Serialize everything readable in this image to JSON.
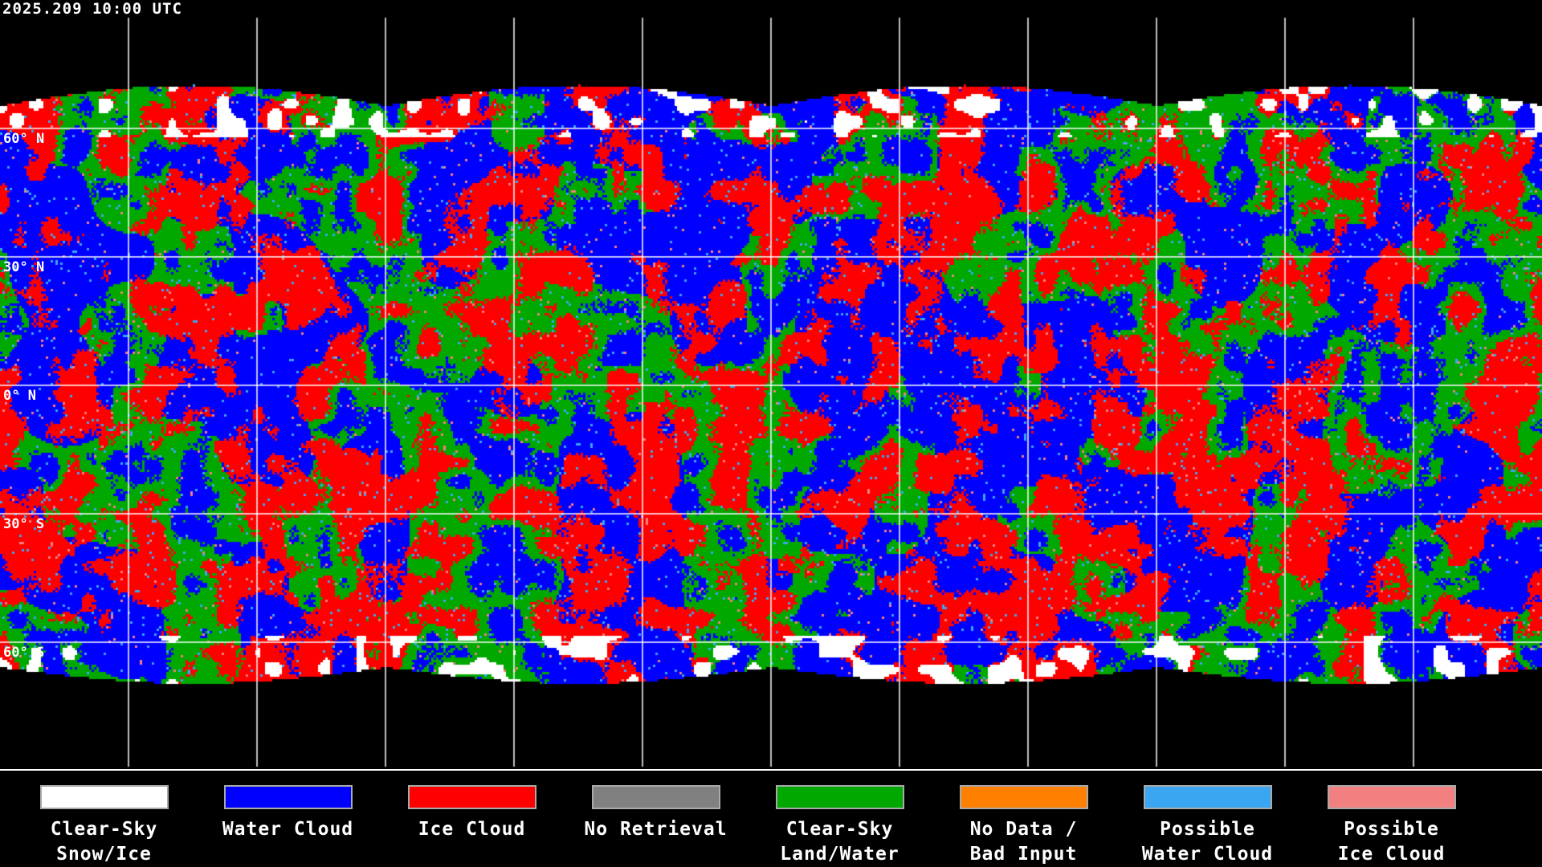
{
  "title": "2025.209 10:00 UTC",
  "latitude_labels": [
    "60° N",
    "30° N",
    "0° N",
    "30° S",
    "60° S"
  ],
  "legend": [
    {
      "line1": "Clear-Sky",
      "line2": "Snow/Ice",
      "color": "#ffffff"
    },
    {
      "line1": "Water Cloud",
      "line2": "",
      "color": "#0000ff"
    },
    {
      "line1": "Ice Cloud",
      "line2": "",
      "color": "#ff0000"
    },
    {
      "line1": "No Retrieval",
      "line2": "",
      "color": "#808080"
    },
    {
      "line1": "Clear-Sky",
      "line2": "Land/Water",
      "color": "#00a800"
    },
    {
      "line1": "No Data /",
      "line2": "Bad Input",
      "color": "#ff8000"
    },
    {
      "line1": "Possible",
      "line2": "Water Cloud",
      "color": "#3aa6f2"
    },
    {
      "line1": "Possible",
      "line2": "Ice Cloud",
      "color": "#f28080"
    }
  ]
}
